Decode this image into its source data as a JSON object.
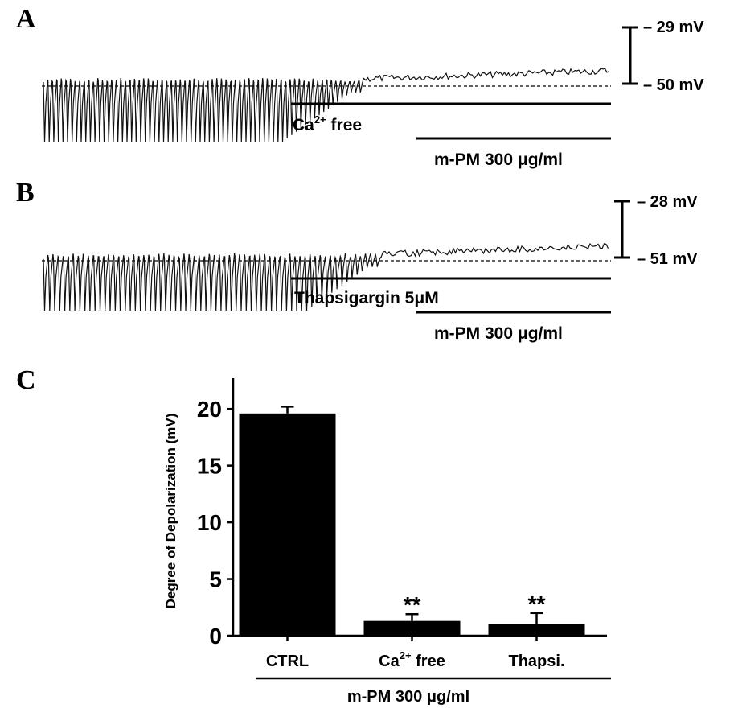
{
  "panels": {
    "A": {
      "letter": "A",
      "scale_top": "– 29 mV",
      "scale_bottom": "– 50 mV",
      "treatment_1": "Ca",
      "treatment_1_sup": "2+",
      "treatment_1_suffix": " free",
      "treatment_2": "m-PM 300 μg/ml"
    },
    "B": {
      "letter": "B",
      "scale_top": "– 28 mV",
      "scale_bottom": "– 51 mV",
      "treatment_1": "Thapsigargin 5μM",
      "treatment_2": "m-PM 300 μg/ml"
    },
    "C": {
      "letter": "C"
    }
  },
  "chart_data": {
    "type": "bar",
    "ylabel": "Degree of Depolarization  (mV)",
    "ylim": [
      0,
      22
    ],
    "yticks": [
      0,
      5,
      10,
      15,
      20
    ],
    "categories": [
      {
        "main": "CTRL",
        "sup": "",
        "suffix": ""
      },
      {
        "main": "Ca",
        "sup": "2+",
        "suffix": " free"
      },
      {
        "main": "Thapsi.",
        "sup": "",
        "suffix": ""
      }
    ],
    "values": [
      19.6,
      1.3,
      1.0
    ],
    "errors": [
      0.6,
      0.6,
      1.0
    ],
    "significance": [
      "",
      "**",
      "**"
    ],
    "group_label": "m-PM 300 μg/ml"
  }
}
